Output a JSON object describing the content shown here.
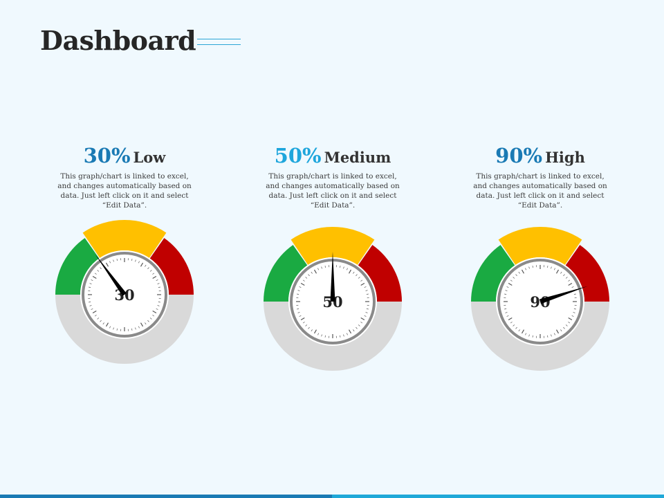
{
  "page": {
    "title": "Dashboard"
  },
  "colors": {
    "background": "#f0f9fe",
    "accent_line": "#2aa5d6",
    "green": "#1aaa42",
    "yellow": "#ffc000",
    "red": "#c00000",
    "track": "#d9d9d9",
    "needle": "#000000",
    "footer_left": "#1a7ab4",
    "footer_right": "#1fa8d8"
  },
  "gauges": [
    {
      "percent_label": "30%",
      "level_label": "Low",
      "percent_color": "#1a7ab4",
      "description": "This graph/chart is linked to excel, and changes automatically based on data. Just left click on it and select “Edit Data”.",
      "value": 30,
      "value_label": "30"
    },
    {
      "percent_label": "50%",
      "level_label": "Medium",
      "percent_color": "#1ea6dc",
      "description": "This graph/chart is linked to excel, and changes automatically based on data. Just left click on it and select “Edit Data”.",
      "value": 50,
      "value_label": "50"
    },
    {
      "percent_label": "90%",
      "level_label": "High",
      "percent_color": "#1a7ab4",
      "description": "This graph/chart is linked to excel, and changes automatically based on data. Just left click on it and select “Edit Data”.",
      "value": 90,
      "value_label": "90"
    }
  ]
}
